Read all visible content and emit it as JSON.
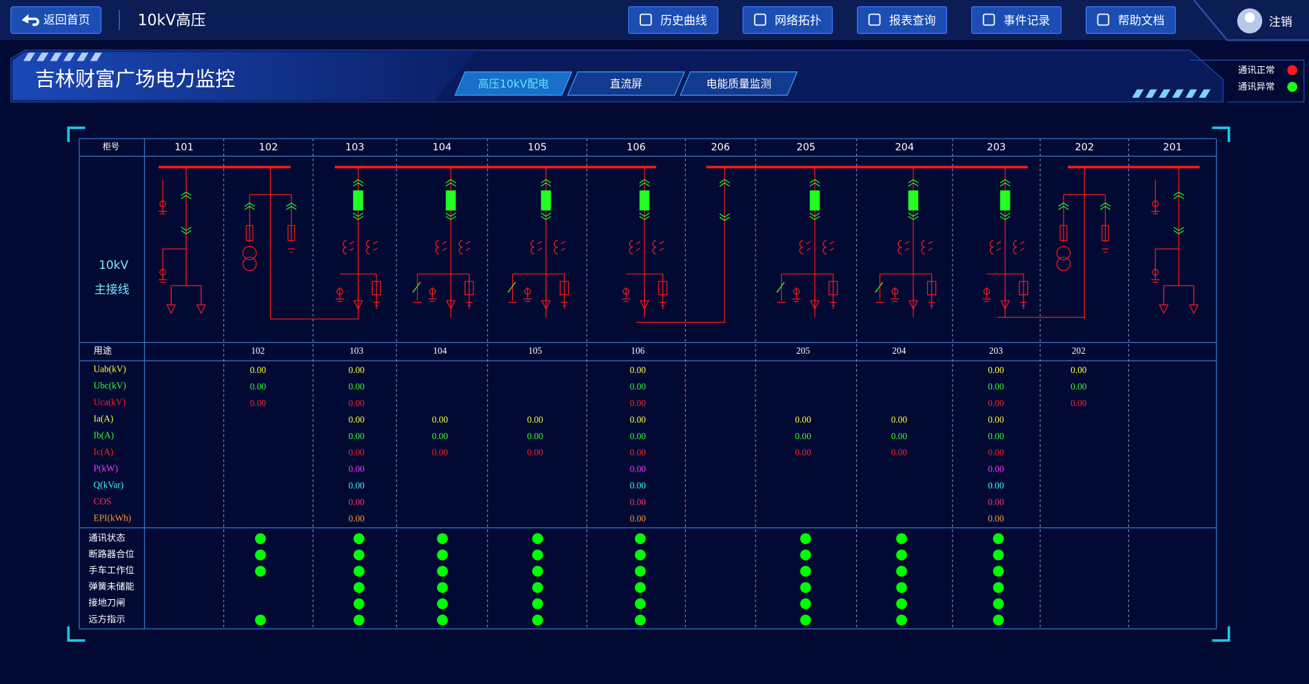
{
  "nav": {
    "back": "返回首页",
    "page": "10kV高压",
    "buttons": [
      "历史曲线",
      "网络拓扑",
      "报表查询",
      "事件记录",
      "帮助文档"
    ],
    "user": "注销"
  },
  "header": {
    "title": "吉林财富广场电力监控",
    "tabs": [
      "高压10kV配电",
      "直流屏",
      "电能质量监测"
    ],
    "status": [
      {
        "label": "通讯正常",
        "color": "#ff1a1a"
      },
      {
        "label": "通讯异常",
        "color": "#1aff1a"
      }
    ]
  },
  "table": {
    "corner": "柜号",
    "cabinets": [
      "101",
      "102",
      "103",
      "104",
      "105",
      "106",
      "206",
      "205",
      "204",
      "203",
      "202",
      "201"
    ],
    "diagram_label": [
      "10kV",
      "主接线"
    ],
    "usage_label": "用途",
    "usage": [
      null,
      "102",
      "103",
      "104",
      "105",
      "106",
      null,
      "205",
      "204",
      "203",
      "202",
      null
    ],
    "measurements": [
      {
        "label": "Uab(kV)",
        "color": "#ffff33",
        "values": [
          null,
          "0.00",
          "0.00",
          null,
          null,
          "0.00",
          null,
          null,
          null,
          "0.00",
          "0.00",
          null
        ]
      },
      {
        "label": "Ubc(kV)",
        "color": "#33ff33",
        "values": [
          null,
          "0.00",
          "0.00",
          null,
          null,
          "0.00",
          null,
          null,
          null,
          "0.00",
          "0.00",
          null
        ]
      },
      {
        "label": "Uca(kV)",
        "color": "#ff2222",
        "values": [
          null,
          "0.00",
          "0.00",
          null,
          null,
          "0.00",
          null,
          null,
          null,
          "0.00",
          "0.00",
          null
        ]
      },
      {
        "label": "Ia(A)",
        "color": "#ffff33",
        "values": [
          null,
          null,
          "0.00",
          "0.00",
          "0.00",
          "0.00",
          null,
          "0.00",
          "0.00",
          "0.00",
          null,
          null
        ]
      },
      {
        "label": "Ib(A)",
        "color": "#33ff33",
        "values": [
          null,
          null,
          "0.00",
          "0.00",
          "0.00",
          "0.00",
          null,
          "0.00",
          "0.00",
          "0.00",
          null,
          null
        ]
      },
      {
        "label": "Ic(A)",
        "color": "#ff2222",
        "values": [
          null,
          null,
          "0.00",
          "0.00",
          "0.00",
          "0.00",
          null,
          "0.00",
          "0.00",
          "0.00",
          null,
          null
        ]
      },
      {
        "label": "P(kW)",
        "color": "#ff33ff",
        "values": [
          null,
          null,
          "0.00",
          null,
          null,
          "0.00",
          null,
          null,
          null,
          "0.00",
          null,
          null
        ]
      },
      {
        "label": "Q(kVar)",
        "color": "#33ffff",
        "values": [
          null,
          null,
          "0.00",
          null,
          null,
          "0.00",
          null,
          null,
          null,
          "0.00",
          null,
          null
        ]
      },
      {
        "label": "COS",
        "color": "#ff3366",
        "values": [
          null,
          null,
          "0.00",
          null,
          null,
          "0.00",
          null,
          null,
          null,
          "0.00",
          null,
          null
        ]
      },
      {
        "label": "EPI(kWh)",
        "color": "#ff9933",
        "values": [
          null,
          null,
          "0.00",
          null,
          null,
          "0.00",
          null,
          null,
          null,
          "0.00",
          null,
          null
        ]
      }
    ],
    "status_on_color": "#00ff00",
    "status_rows": [
      {
        "label": "通讯状态",
        "values": [
          false,
          true,
          true,
          true,
          true,
          true,
          false,
          true,
          true,
          true,
          false,
          false
        ]
      },
      {
        "label": "断路器合位",
        "values": [
          false,
          true,
          true,
          true,
          true,
          true,
          false,
          true,
          true,
          true,
          false,
          false
        ]
      },
      {
        "label": "手车工作位",
        "values": [
          false,
          true,
          true,
          true,
          true,
          true,
          false,
          true,
          true,
          true,
          false,
          false
        ]
      },
      {
        "label": "弹簧未储能",
        "values": [
          false,
          false,
          true,
          true,
          true,
          true,
          false,
          true,
          true,
          true,
          false,
          false
        ]
      },
      {
        "label": "接地刀闸",
        "values": [
          false,
          false,
          true,
          true,
          true,
          true,
          false,
          true,
          true,
          true,
          false,
          false
        ]
      },
      {
        "label": "远方指示",
        "values": [
          false,
          true,
          true,
          true,
          true,
          true,
          false,
          true,
          true,
          true,
          false,
          false
        ]
      }
    ]
  }
}
